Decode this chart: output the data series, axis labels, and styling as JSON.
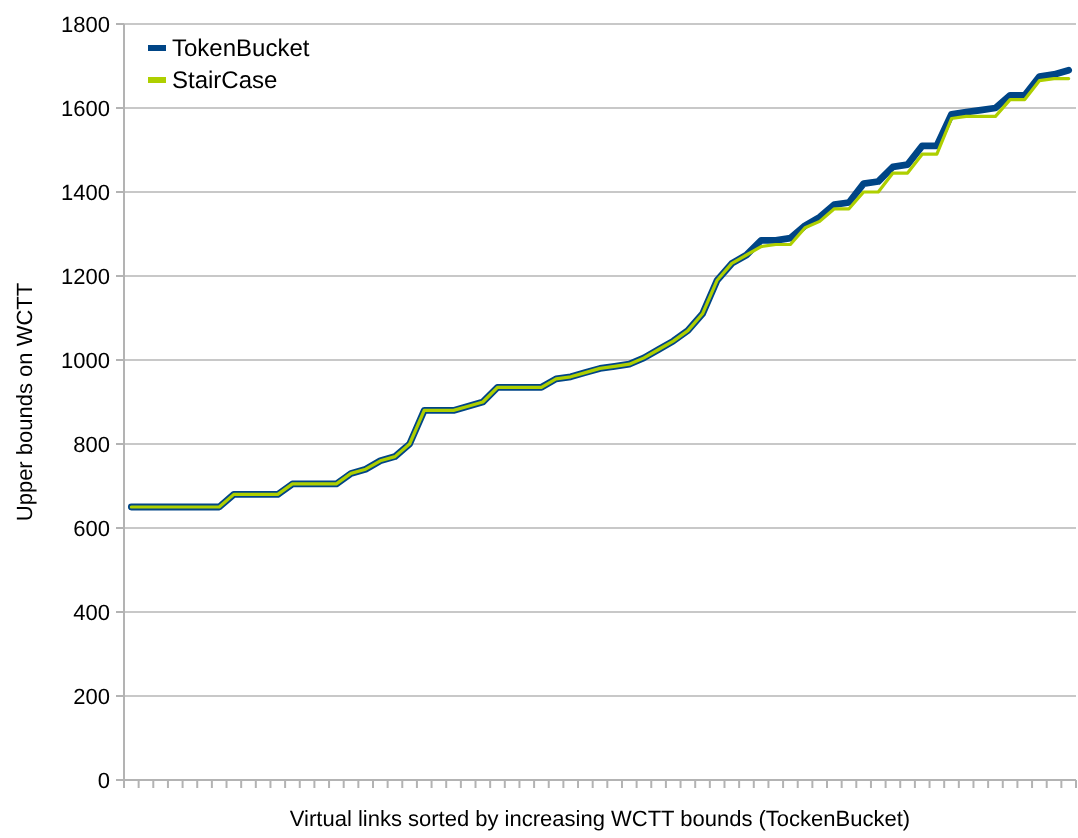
{
  "chart_data": {
    "type": "line",
    "xlabel": "Virtual links sorted by increasing WCTT bounds (TockenBucket)",
    "ylabel": "Upper bounds on WCTT",
    "categories": [
      null,
      null,
      null,
      null,
      null,
      null,
      null,
      null,
      null,
      null,
      null,
      null,
      null,
      null,
      null,
      null,
      null,
      null,
      null,
      null,
      null,
      null,
      null,
      null,
      null,
      null,
      null,
      null,
      null,
      null,
      null,
      null,
      null,
      null,
      null,
      null,
      null,
      null,
      null,
      null,
      null,
      null,
      null,
      null,
      null,
      null,
      null,
      null,
      null,
      null,
      null,
      null,
      null,
      null,
      null,
      null,
      null,
      null,
      null,
      null,
      null,
      null,
      null,
      null,
      null
    ],
    "series": [
      {
        "name": "TokenBucket",
        "color": "#004586",
        "values": [
          650,
          650,
          650,
          650,
          650,
          650,
          650,
          680,
          680,
          680,
          680,
          705,
          705,
          705,
          705,
          730,
          740,
          760,
          770,
          800,
          880,
          880,
          880,
          890,
          900,
          935,
          935,
          935,
          935,
          955,
          960,
          970,
          980,
          985,
          990,
          1005,
          1025,
          1045,
          1070,
          1110,
          1190,
          1230,
          1250,
          1285,
          1285,
          1290,
          1320,
          1340,
          1370,
          1375,
          1420,
          1425,
          1460,
          1465,
          1510,
          1510,
          1585,
          1590,
          1595,
          1600,
          1630,
          1630,
          1675,
          1680,
          1690
        ]
      },
      {
        "name": "StairCase",
        "color": "#aecf00",
        "values": [
          650,
          650,
          650,
          650,
          650,
          650,
          650,
          680,
          680,
          680,
          680,
          705,
          705,
          705,
          705,
          730,
          740,
          760,
          770,
          800,
          880,
          880,
          880,
          890,
          900,
          935,
          935,
          935,
          935,
          955,
          960,
          970,
          980,
          985,
          990,
          1005,
          1025,
          1045,
          1070,
          1110,
          1190,
          1230,
          1250,
          1270,
          1275,
          1275,
          1315,
          1330,
          1360,
          1360,
          1400,
          1400,
          1445,
          1445,
          1490,
          1490,
          1575,
          1580,
          1580,
          1580,
          1620,
          1620,
          1665,
          1670,
          1670
        ]
      }
    ],
    "ylim": [
      0,
      1800
    ],
    "yticks": [
      0,
      200,
      400,
      600,
      800,
      1000,
      1200,
      1400,
      1600,
      1800
    ],
    "grid": "y",
    "legend": "top left",
    "tick_labels": "y",
    "marker": "none",
    "line_style": "solid"
  }
}
